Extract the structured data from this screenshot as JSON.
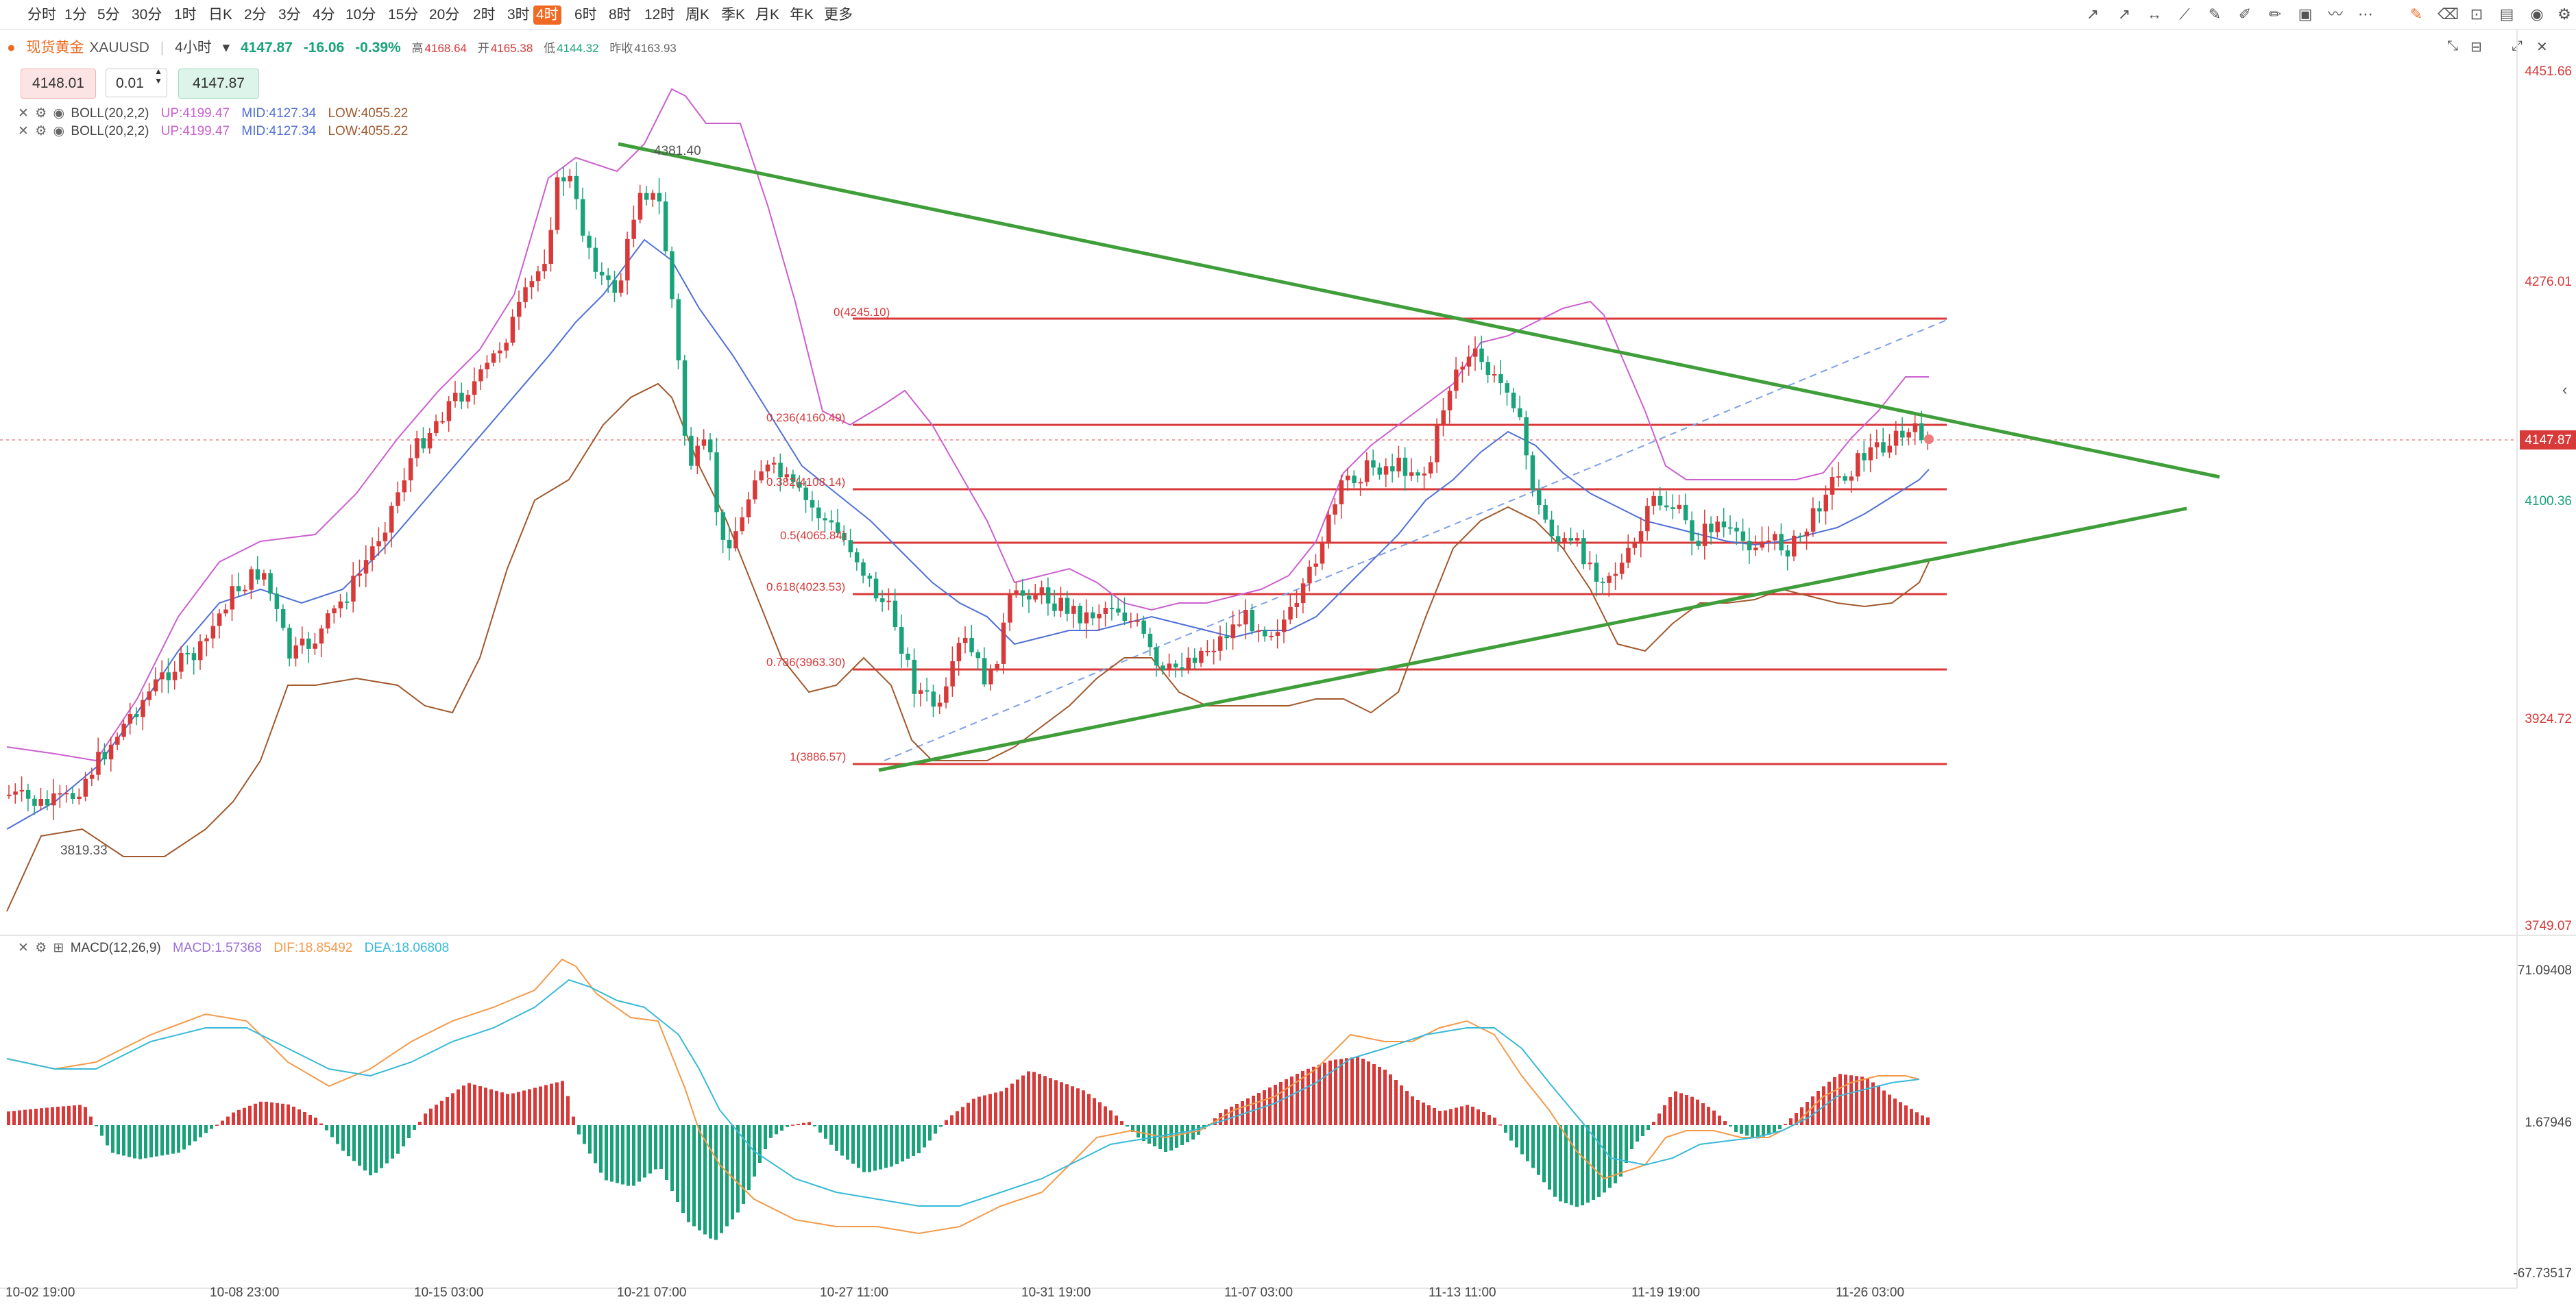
{
  "toolbar": {
    "timeframes": [
      "分时",
      "1分",
      "5分",
      "30分",
      "1时",
      "日K",
      "2分",
      "3分",
      "4分",
      "10分",
      "15分",
      "20分",
      "2时",
      "3时",
      "4时",
      "6时",
      "8时",
      "12时",
      "周K",
      "季K",
      "月K",
      "年K",
      "更多"
    ],
    "active": "4时"
  },
  "symbol": {
    "name": "现货黄金",
    "code": "XAUUSD",
    "interval": "4小时",
    "price": "4147.87",
    "change": "-16.06",
    "change_pct": "-0.39%",
    "high_label": "高",
    "high": "4168.64",
    "open_label": "开",
    "open": "4165.38",
    "low_label": "低",
    "low": "4144.32",
    "prev_label": "昨收",
    "prev": "4163.93"
  },
  "order": {
    "sell": "4148.01",
    "lot": "0.01",
    "buy": "4147.87"
  },
  "indicators": {
    "boll1": {
      "name": "BOLL(20,2,2)",
      "up": "UP:4199.47",
      "mid": "MID:4127.34",
      "low": "LOW:4055.22"
    },
    "boll2": {
      "name": "BOLL(20,2,2)",
      "up": "UP:4199.47",
      "mid": "MID:4127.34",
      "low": "LOW:4055.22"
    },
    "macd": {
      "name": "MACD(12,26,9)",
      "macd": "MACD:1.57368",
      "dif": "DIF:18.85492",
      "dea": "DEA:18.06808"
    }
  },
  "price_axis": [
    "4451.66",
    "4276.01",
    "4100.36",
    "3924.72",
    "3749.07"
  ],
  "current_price_tag": "4147.87",
  "macd_axis": [
    "71.09408",
    "1.67946",
    "-67.73517"
  ],
  "date_axis": [
    "10-02 19:00",
    "10-08 23:00",
    "10-15 03:00",
    "10-21 07:00",
    "10-27 11:00",
    "10-31 19:00",
    "11-07 03:00",
    "11-13 11:00",
    "11-19 19:00",
    "11-26 03:00"
  ],
  "annotations": {
    "high_mark": "4381.40",
    "low_mark": "3819.33"
  },
  "fib_levels": [
    "0(4245.10)",
    "0.236(4160.49)",
    "0.382(4108.14)",
    "0.5(4065.84)",
    "0.618(4023.53)",
    "0.786(3963.30)",
    "1(3886.57)"
  ],
  "colors": {
    "up": "#d83a3a",
    "down": "#1aa37a",
    "trend": "#3f9e3a",
    "accent": "#ef6b24",
    "boll_up": "#cc5fd0",
    "boll_mid": "#4f6fd6",
    "boll_low": "#a0582c",
    "dif": "#f39a4a",
    "dea": "#38b9d8"
  }
}
